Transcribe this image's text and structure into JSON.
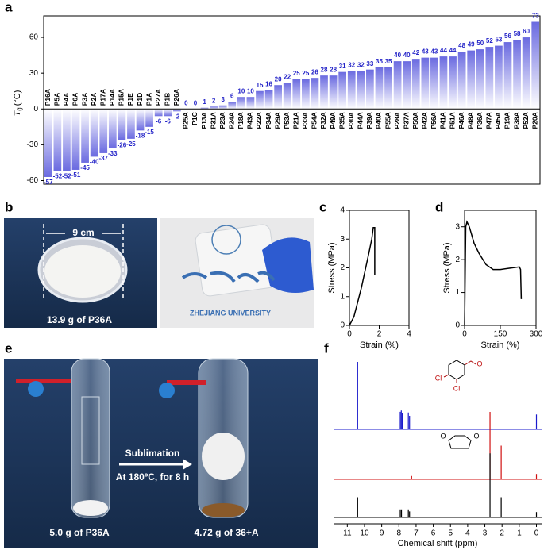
{
  "chart_data": [
    {
      "panel": "a",
      "type": "bar",
      "ylabel": {
        "main": "T",
        "sub": "g",
        "unit": "(°C)"
      },
      "categories": [
        "P16A",
        "P5A",
        "P4A",
        "P6A",
        "P3A",
        "P2A",
        "P17A",
        "P14A",
        "P15A",
        "P1E",
        "P1D",
        "P1A",
        "P27A",
        "P1B",
        "P26A",
        "P25A",
        "P1C",
        "P13A",
        "P31A",
        "P23A",
        "P24A",
        "P18A",
        "P43A",
        "P22A",
        "P34A",
        "P29A",
        "P53A",
        "P21A",
        "P33A",
        "P54A",
        "P32A",
        "P49A",
        "P35A",
        "P30A",
        "P44A",
        "P39A",
        "P40A",
        "P55A",
        "P28A",
        "P37A",
        "P50A",
        "P42A",
        "P56A",
        "P41A",
        "P51A",
        "P46A",
        "P48A",
        "P36A",
        "P47A",
        "P45A",
        "P19A",
        "P38A",
        "P52A",
        "P20A"
      ],
      "values": [
        -57,
        -52,
        -52,
        -51,
        -45,
        -40,
        -37,
        -33,
        -26,
        -25,
        -18,
        -15,
        -6,
        -6,
        -2,
        0,
        0,
        1,
        2,
        3,
        6,
        10,
        10,
        15,
        16,
        20,
        22,
        25,
        25,
        26,
        28,
        28,
        31,
        32,
        32,
        33,
        35,
        35,
        40,
        40,
        42,
        43,
        43,
        44,
        44,
        48,
        49,
        50,
        52,
        53,
        56,
        58,
        60,
        73
      ],
      "color": "#6a6ae0",
      "label_color": "#2424c8",
      "ylim": [
        -63,
        78
      ],
      "yticks": [
        -60,
        -30,
        0,
        30,
        60
      ]
    },
    {
      "panel": "c",
      "type": "line",
      "xlabel": "Strain (%)",
      "ylabel": "Stress (MPa)",
      "x": [
        0,
        0.3,
        0.8,
        1.3,
        1.5,
        1.6,
        1.7,
        1.7
      ],
      "values": [
        0,
        0.3,
        1.3,
        2.5,
        3.0,
        3.4,
        3.4,
        1.75
      ],
      "color": "#000000",
      "xlim": [
        0,
        4
      ],
      "xticks": [
        0,
        2,
        4
      ],
      "ylim": [
        0,
        4
      ],
      "yticks": [
        0,
        1,
        2,
        3,
        4
      ]
    },
    {
      "panel": "d",
      "type": "line",
      "xlabel": "Strain (%)",
      "ylabel": "Stress (MPa)",
      "x": [
        0,
        5,
        10,
        20,
        40,
        60,
        90,
        120,
        150,
        200,
        230,
        235,
        238
      ],
      "values": [
        0,
        3.0,
        3.15,
        3.0,
        2.5,
        2.2,
        1.85,
        1.7,
        1.7,
        1.75,
        1.78,
        1.7,
        0.8
      ],
      "color": "#000000",
      "xlim": [
        0,
        300
      ],
      "xticks": [
        0,
        150,
        300
      ],
      "ylim": [
        0,
        3.5
      ],
      "yticks": [
        0,
        1,
        2,
        3
      ]
    },
    {
      "panel": "f",
      "type": "spectrum",
      "xlabel": "Chemical shift (ppm)",
      "xlim": [
        11.8,
        -0.3
      ],
      "xticks": [
        11,
        10,
        9,
        8,
        7,
        6,
        5,
        4,
        3,
        2,
        1,
        0
      ],
      "annotations": [
        "Cl",
        "Cl",
        "O",
        "O",
        "O"
      ],
      "series": [
        {
          "color": "#1a1acc",
          "x": [
            10.4,
            7.92,
            7.86,
            7.8,
            7.45,
            7.38,
            0
          ],
          "values": [
            100,
            26,
            28,
            24,
            25,
            20,
            22
          ]
        },
        {
          "color": "#d01010",
          "x": [
            7.26,
            2.7,
            2.05,
            0
          ],
          "values": [
            5,
            100,
            50,
            8
          ]
        },
        {
          "color": "#000000",
          "x": [
            10.4,
            7.92,
            7.85,
            7.45,
            7.38,
            2.7,
            2.05,
            0
          ],
          "values": [
            30,
            12,
            12,
            12,
            9,
            95,
            30,
            8
          ]
        }
      ]
    }
  ],
  "photos": [
    {
      "panel": "b",
      "texts": [
        "9 cm",
        "13.9 g of P36A",
        "ZHEJIANG UNIVERSITY"
      ]
    },
    {
      "panel": "e",
      "texts": [
        "Sublimation",
        "At 180ºC, for 8 h",
        "5.0 g of P36A",
        "4.72 g of 36+A"
      ]
    }
  ]
}
